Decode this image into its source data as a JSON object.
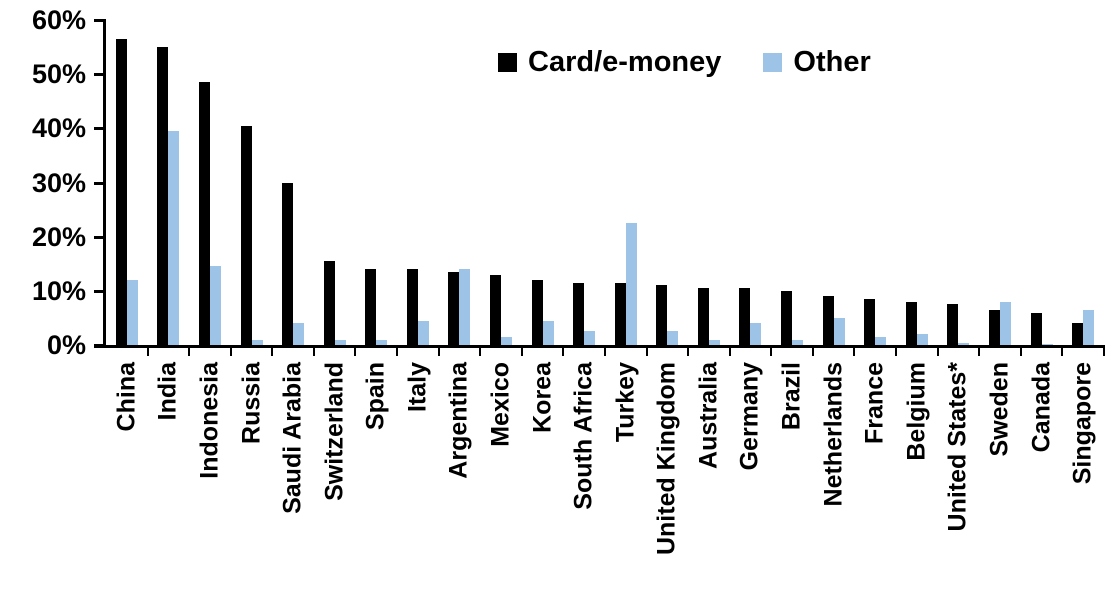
{
  "chart_data": {
    "type": "bar",
    "title": "",
    "xlabel": "",
    "ylabel": "",
    "ylim": [
      0,
      60
    ],
    "ytick_step": 10,
    "yticks": [
      "60%",
      "50%",
      "40%",
      "30%",
      "20%",
      "10%",
      "0%"
    ],
    "grid": false,
    "legend_position": "top-center",
    "axis_color": "#000000",
    "categories": [
      "China",
      "India",
      "Indonesia",
      "Russia",
      "Saudi Arabia",
      "Switzerland",
      "Spain",
      "Italy",
      "Argentina",
      "Mexico",
      "Korea",
      "South Africa",
      "Turkey",
      "United Kingdom",
      "Australia",
      "Germany",
      "Brazil",
      "Netherlands",
      "France",
      "Belgium",
      "United States*",
      "Sweden",
      "Canada",
      "Singapore"
    ],
    "series": [
      {
        "name": "Card/e-money",
        "color": "#000000",
        "values": [
          56.5,
          55,
          48.5,
          40.5,
          30,
          15.5,
          14,
          14,
          13.5,
          13,
          12,
          11.5,
          11.5,
          11,
          10.5,
          10.5,
          10,
          9,
          8.5,
          8,
          7.5,
          6.5,
          6,
          4
        ]
      },
      {
        "name": "Other",
        "color": "#9dc3e6",
        "values": [
          12,
          39.5,
          14.5,
          1,
          4,
          1,
          1,
          4.5,
          14,
          1.5,
          4.5,
          2.5,
          22.5,
          2.5,
          1,
          4,
          1,
          5,
          1.5,
          2,
          0.3,
          8,
          0.1,
          6.5
        ]
      }
    ]
  }
}
